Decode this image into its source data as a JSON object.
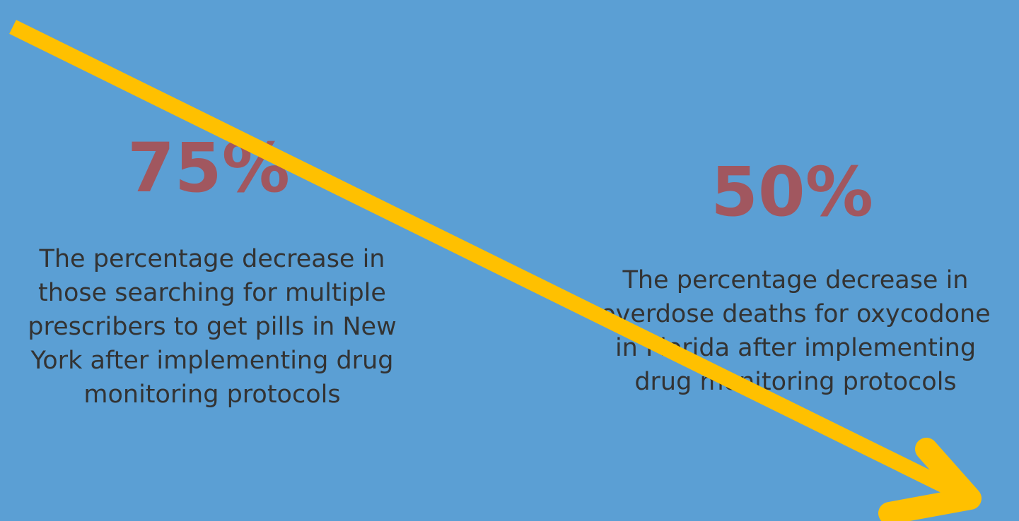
{
  "colors": {
    "background": "#5b9fd4",
    "stat_number": "#a1575f",
    "body_text": "#333333",
    "arrow": "#ffc000"
  },
  "icons": {
    "trend_arrow": "arrow-down-right-icon"
  },
  "stats": [
    {
      "value": "75%",
      "lines": [
        "The percentage decrease in",
        "those searching for multiple",
        "prescribers to get pills in New",
        "York after implementing drug",
        "monitoring protocols"
      ]
    },
    {
      "value": "50%",
      "lines": [
        "The percentage decrease in",
        "overdose deaths for oxycodone",
        "in Florida after implementing",
        "drug monitoring protocols"
      ]
    }
  ]
}
